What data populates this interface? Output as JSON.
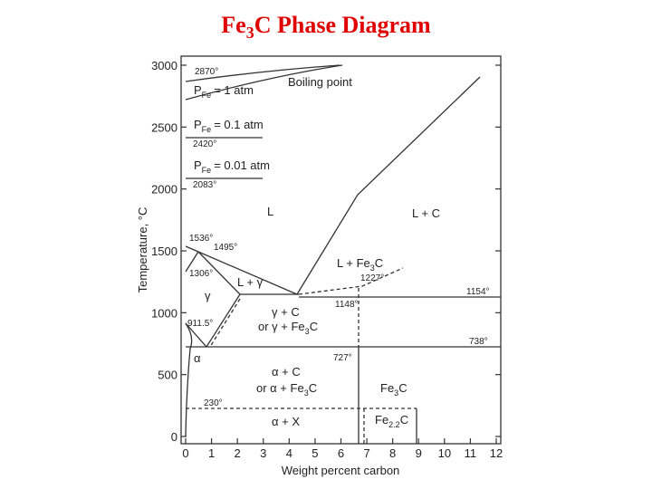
{
  "title": {
    "main": "Fe",
    "sub": "3",
    "rest": "C Phase Diagram"
  },
  "axes": {
    "xlabel": "Weight percent carbon",
    "ylabel": "Temperature, °C",
    "xlim": [
      0,
      12
    ],
    "ylim": [
      0,
      3000
    ],
    "xticks": [
      0,
      1,
      2,
      3,
      4,
      5,
      6,
      7,
      8,
      9,
      10,
      11,
      12
    ],
    "yticks": [
      0,
      500,
      1000,
      1500,
      2000,
      2500,
      3000
    ]
  },
  "temperatures": [
    "2870°",
    "2420°",
    "2083°",
    "1536°",
    "1495°",
    "1306°",
    "1227°",
    "1154°",
    "1148°",
    "911.5°",
    "738°",
    "727°",
    "230°"
  ],
  "pressures": [
    {
      "p": "P",
      "sub": "Fe",
      "rest": "= 1 atm"
    },
    {
      "p": "P",
      "sub": "Fe",
      "rest": "= 0.1 atm"
    },
    {
      "p": "P",
      "sub": "Fe",
      "rest": "= 0.01 atm"
    }
  ],
  "regions": [
    "Boiling point",
    "L",
    "L + C",
    "γ",
    "L + γ",
    "γ + C",
    "α",
    "α + C",
    "α + X"
  ],
  "compound_regions": [
    {
      "a": "or γ + Fe",
      "sub": "3",
      "b": "C"
    },
    {
      "a": "L + Fe",
      "sub": "3",
      "b": "C"
    },
    {
      "a": "or α + Fe",
      "sub": "3",
      "b": "C"
    },
    {
      "a": "Fe",
      "sub": "3",
      "b": "C"
    },
    {
      "a": "Fe",
      "sub": "2.2",
      "b": "C"
    }
  ]
}
